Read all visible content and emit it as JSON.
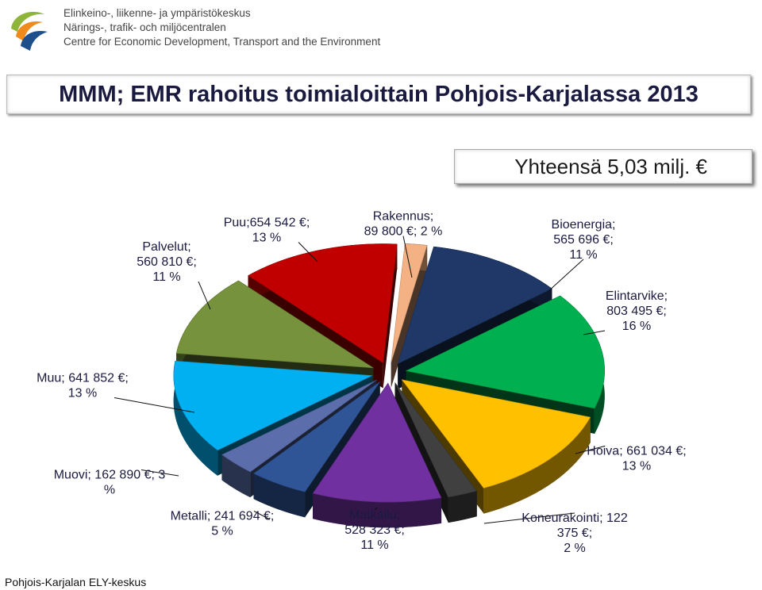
{
  "header": {
    "org_lines": [
      "Elinkeino-, liikenne- ja ympäristökeskus",
      "Närings-, trafik- och miljöcentralen",
      "Centre for Economic Development, Transport and the Environment"
    ]
  },
  "title": "MMM; EMR rahoitus toimialoittain Pohjois-Karjalassa 2013",
  "total": "Yhteensä 5,03 milj. €",
  "footer": "Pohjois-Karjalan ELY-keskus",
  "chart_data": {
    "type": "pie",
    "exploded": true,
    "three_d": true,
    "slices": [
      {
        "label": "Rakennus",
        "value": 89800,
        "percent": 2,
        "color": "#f4b183",
        "text": [
          "Rakennus;",
          "89 800 €; 2 %"
        ]
      },
      {
        "label": "Bioenergia",
        "value": 565696,
        "percent": 11,
        "color": "#1f3868",
        "text": [
          "Bioenergia;",
          "565 696 €;",
          "11 %"
        ]
      },
      {
        "label": "Elintarvike",
        "value": 803495,
        "percent": 16,
        "color": "#00b050",
        "text": [
          "Elintarvike;",
          "803 495 €;",
          "16 %"
        ]
      },
      {
        "label": "Hoiva",
        "value": 661034,
        "percent": 13,
        "color": "#ffc000",
        "text": [
          "Hoiva; 661 034 €;",
          "13 %"
        ]
      },
      {
        "label": "Koneurakointi",
        "value": 122375,
        "percent": 2,
        "color": "#404040",
        "text": [
          "Koneurakointi; 122",
          "375 €;",
          "2 %"
        ]
      },
      {
        "label": "Matkailu",
        "value": 528323,
        "percent": 11,
        "color": "#7030a0",
        "text": [
          "Matkailu;",
          "528 323 €;",
          "11 %"
        ]
      },
      {
        "label": "Metalli",
        "value": 241694,
        "percent": 5,
        "color": "#2f5597",
        "text": [
          "Metalli; 241 694 €;",
          "5 %"
        ]
      },
      {
        "label": "Muovi",
        "value": 162890,
        "percent": 3,
        "color": "#5b6eab",
        "text": [
          "Muovi; 162 890 €; 3",
          "%"
        ]
      },
      {
        "label": "Muu",
        "value": 641852,
        "percent": 13,
        "color": "#00b0f0",
        "text": [
          "Muu; 641 852 €;",
          "13 %"
        ]
      },
      {
        "label": "Palvelut",
        "value": 560810,
        "percent": 11,
        "color": "#76923c",
        "text": [
          "Palvelut;",
          "560 810 €;",
          "11 %"
        ]
      },
      {
        "label": "Puu",
        "value": 654542,
        "percent": 13,
        "color": "#c00000",
        "text": [
          "Puu;654 542 €;",
          "13 %"
        ]
      }
    ]
  }
}
